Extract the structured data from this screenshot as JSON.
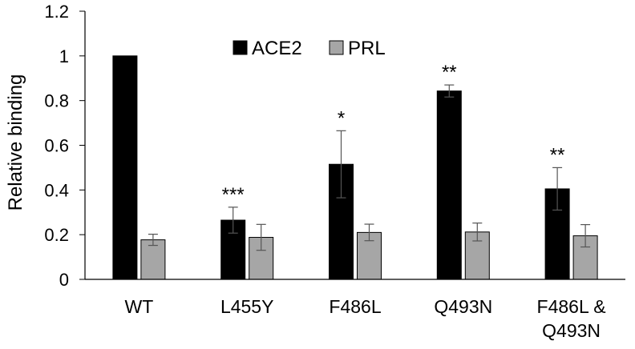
{
  "chart_data": {
    "type": "bar",
    "title": "",
    "xlabel": "",
    "ylabel": "Relative binding",
    "ylim": [
      0,
      1.2
    ],
    "yticks": [
      "0",
      "0.2",
      "0.4",
      "0.6",
      "0.8",
      "1",
      "1.2"
    ],
    "categories": [
      [
        "WT"
      ],
      [
        "L455Y"
      ],
      [
        "F486L"
      ],
      [
        "Q493N"
      ],
      [
        "F486L &",
        "Q493N"
      ]
    ],
    "series": [
      {
        "name": "ACE2",
        "color": "#000000",
        "values": [
          1.0,
          0.265,
          0.515,
          0.843,
          0.405
        ],
        "errors": [
          0.0,
          0.058,
          0.15,
          0.027,
          0.095
        ]
      },
      {
        "name": "PRL",
        "color": "#a6a6a6",
        "values": [
          0.177,
          0.188,
          0.21,
          0.212,
          0.195
        ],
        "errors": [
          0.025,
          0.058,
          0.037,
          0.04,
          0.05
        ]
      }
    ],
    "significance": [
      "",
      "***",
      "*",
      "**",
      "**"
    ],
    "legend_position": "top-center",
    "grid": false
  }
}
